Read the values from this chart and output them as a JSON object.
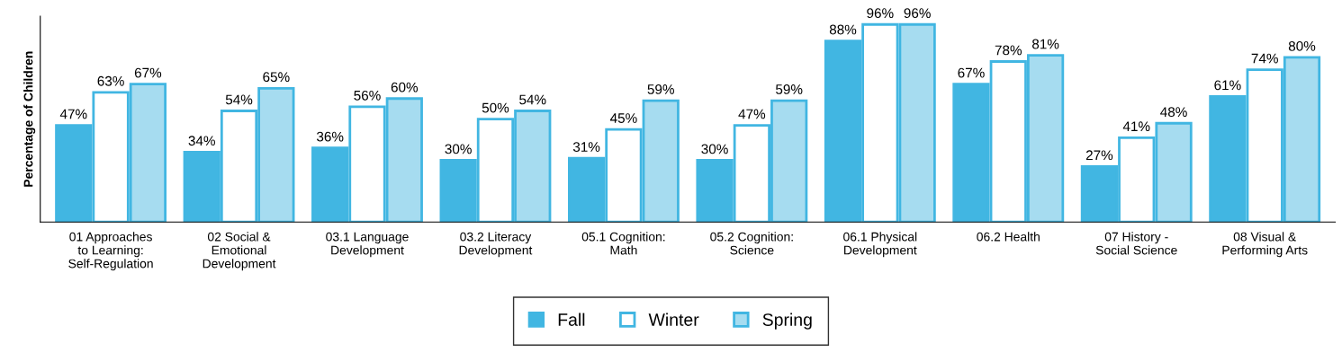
{
  "chart_data": {
    "type": "bar",
    "ylabel": "Percentage of Children",
    "categories": [
      "01 Approaches\nto Learning:\nSelf-Regulation",
      "02 Social &\nEmotional\nDevelopment",
      "03.1 Language\nDevelopment",
      "03.2 Literacy\nDevelopment",
      "05.1 Cognition:\nMath",
      "05.2 Cognition:\nScience",
      "06.1 Physical\nDevelopment",
      "06.2 Health",
      "07 History -\nSocial Science",
      "08 Visual &\nPerforming Arts"
    ],
    "series": [
      {
        "name": "Fall",
        "color": "#41b6e2",
        "values": [
          47,
          34,
          36,
          30,
          31,
          30,
          88,
          67,
          27,
          61
        ],
        "value_labels": [
          "47%",
          "34%",
          "36%",
          "30%",
          "31%",
          "30%",
          "88%",
          "67%",
          "27%",
          "61%"
        ]
      },
      {
        "name": "Winter",
        "color": "#ffffff",
        "values": [
          63,
          54,
          56,
          50,
          45,
          47,
          96,
          78,
          41,
          74
        ],
        "value_labels": [
          "63%",
          "54%",
          "56%",
          "50%",
          "45%",
          "47%",
          "96%",
          "78%",
          "41%",
          "74%"
        ]
      },
      {
        "name": "Spring",
        "color": "#a6dcf0",
        "values": [
          67,
          65,
          60,
          54,
          59,
          59,
          96,
          81,
          48,
          80
        ],
        "value_labels": [
          "67%",
          "65%",
          "60%",
          "54%",
          "59%",
          "59%",
          "96%",
          "81%",
          "48%",
          "80%"
        ]
      }
    ],
    "ylim": [
      0,
      100
    ],
    "tick_labels": "x",
    "legend": "bottom",
    "grid": false
  }
}
